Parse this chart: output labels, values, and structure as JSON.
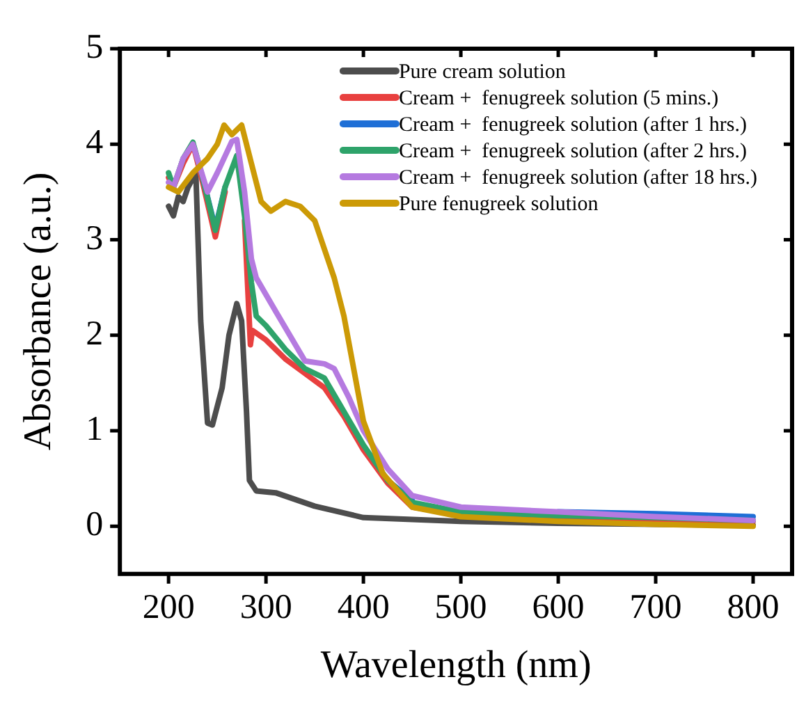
{
  "chart_data": {
    "type": "line",
    "xlabel": "Wavelength (nm)",
    "ylabel": "Absorbance (a.u.)",
    "xlim": [
      150,
      840
    ],
    "ylim": [
      -0.5,
      5
    ],
    "xticks": [
      200,
      300,
      400,
      500,
      600,
      700,
      800
    ],
    "yticks": [
      0,
      1,
      2,
      3,
      4,
      5
    ],
    "grid": false,
    "legend": "top right",
    "marker": "none",
    "line_style": "solid",
    "series": [
      {
        "name": "Pure cream solution",
        "color": "#4d4d4d",
        "x": [
          200,
          205,
          210,
          215,
          220,
          228,
          233,
          240,
          245,
          255,
          262,
          270,
          275,
          280,
          283,
          290,
          310,
          350,
          400,
          450,
          500,
          600,
          700,
          800
        ],
        "values": [
          3.35,
          3.25,
          3.45,
          3.4,
          3.55,
          3.7,
          2.15,
          1.08,
          1.06,
          1.45,
          2.0,
          2.33,
          2.15,
          1.2,
          0.48,
          0.37,
          0.35,
          0.21,
          0.09,
          0.07,
          0.05,
          0.03,
          0.02,
          0.01
        ]
      },
      {
        "name": "Cream +  fenugreek solution (5 mins.)",
        "color": "#e8403f",
        "x": [
          200,
          205,
          215,
          225,
          235,
          248,
          258,
          270,
          278,
          284,
          286,
          300,
          320,
          340,
          360,
          380,
          400,
          425,
          450,
          500,
          600,
          700,
          800
        ],
        "values": [
          3.65,
          3.55,
          3.8,
          4.0,
          3.6,
          3.03,
          3.5,
          null,
          3.2,
          1.9,
          2.05,
          1.95,
          1.75,
          1.6,
          1.45,
          1.15,
          0.8,
          0.45,
          0.2,
          0.12,
          0.08,
          0.06,
          0.05
        ]
      },
      {
        "name": "Cream +  fenugreek solution (after 1 hrs.)",
        "color": "#1f6fd6",
        "x": [
          235,
          248,
          258,
          270,
          278,
          285,
          290,
          300,
          320,
          340,
          360,
          380,
          400,
          425,
          450,
          500,
          600,
          700,
          800
        ],
        "values": [
          3.65,
          3.12,
          3.55,
          null,
          null,
          null,
          null,
          null,
          null,
          null,
          null,
          null,
          null,
          0.48,
          0.27,
          null,
          0.15,
          0.13,
          0.1
        ]
      },
      {
        "name": "Cream +  fenugreek solution (after 2 hrs.)",
        "color": "#2ea36a",
        "x": [
          200,
          205,
          215,
          225,
          235,
          248,
          258,
          270,
          278,
          285,
          290,
          300,
          320,
          340,
          360,
          380,
          400,
          425,
          450,
          500,
          600,
          700,
          800
        ],
        "values": [
          3.7,
          3.55,
          3.85,
          4.02,
          3.65,
          3.1,
          3.55,
          3.88,
          3.25,
          2.55,
          2.2,
          2.1,
          1.85,
          1.65,
          1.55,
          1.2,
          0.85,
          0.48,
          0.25,
          0.15,
          0.11,
          0.09,
          0.06
        ]
      },
      {
        "name": "Cream +  fenugreek solution (after 18 hrs.)",
        "color": "#b57ae0",
        "x": [
          200,
          205,
          215,
          225,
          240,
          250,
          265,
          270,
          278,
          285,
          290,
          310,
          340,
          360,
          370,
          385,
          400,
          425,
          450,
          500,
          600,
          700,
          800
        ],
        "values": [
          3.6,
          3.55,
          3.85,
          4.0,
          3.5,
          3.7,
          4.03,
          4.05,
          3.5,
          2.8,
          2.6,
          2.25,
          1.73,
          1.7,
          1.65,
          1.35,
          1.0,
          0.6,
          0.32,
          0.2,
          0.15,
          0.1,
          0.06
        ]
      },
      {
        "name": "Pure fenugreek solution",
        "color": "#cc9a06",
        "x": [
          200,
          210,
          225,
          240,
          250,
          257,
          265,
          275,
          285,
          295,
          305,
          320,
          335,
          350,
          370,
          380,
          400,
          420,
          450,
          500,
          600,
          700,
          800
        ],
        "values": [
          3.55,
          3.5,
          3.7,
          3.85,
          4.0,
          4.2,
          4.1,
          4.2,
          3.8,
          3.4,
          3.3,
          3.4,
          3.35,
          3.2,
          2.6,
          2.2,
          1.1,
          0.55,
          0.2,
          0.1,
          0.05,
          0.02,
          0.0
        ]
      }
    ]
  }
}
